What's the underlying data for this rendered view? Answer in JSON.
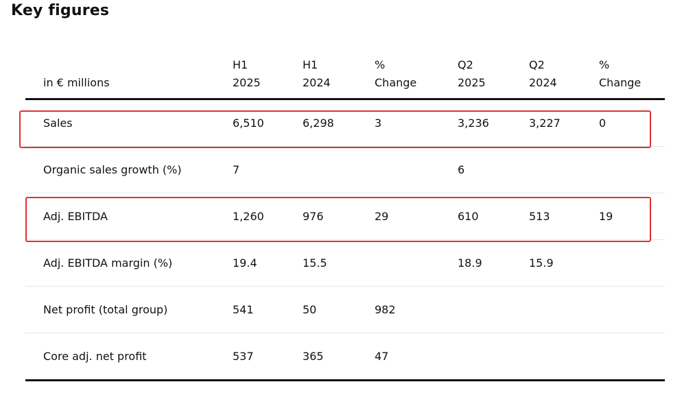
{
  "title": "Key figures",
  "table": {
    "header": {
      "label": "in € millions",
      "columns": [
        {
          "line1": "H1",
          "line2": "2025"
        },
        {
          "line1": "H1",
          "line2": "2024"
        },
        {
          "line1": "%",
          "line2": "Change"
        },
        {
          "line1": "Q2",
          "line2": "2025"
        },
        {
          "line1": "Q2",
          "line2": "2024"
        },
        {
          "line1": "%",
          "line2": "Change"
        }
      ]
    },
    "rows": [
      {
        "label": "Sales",
        "values": [
          "6,510",
          "6,298",
          "3",
          "3,236",
          "3,227",
          "0"
        ],
        "highlighted": true
      },
      {
        "label": "Organic sales growth (%)",
        "values": [
          "7",
          "",
          "",
          "6",
          "",
          ""
        ],
        "highlighted": false
      },
      {
        "label": "Adj. EBITDA",
        "values": [
          "1,260",
          "976",
          "29",
          "610",
          "513",
          "19"
        ],
        "highlighted": true
      },
      {
        "label": "Adj. EBITDA margin (%)",
        "values": [
          "19.4",
          "15.5",
          "",
          "18.9",
          "15.9",
          ""
        ],
        "highlighted": false
      },
      {
        "label": "Net profit (total group)",
        "values": [
          "541",
          "50",
          "982",
          "",
          "",
          ""
        ],
        "highlighted": false
      },
      {
        "label": "Core adj. net profit",
        "values": [
          "537",
          "365",
          "47",
          "",
          "",
          ""
        ],
        "highlighted": false
      }
    ]
  },
  "colors": {
    "highlight": "#e0302f",
    "rule": "#111111",
    "divider": "#e6e6e6"
  }
}
